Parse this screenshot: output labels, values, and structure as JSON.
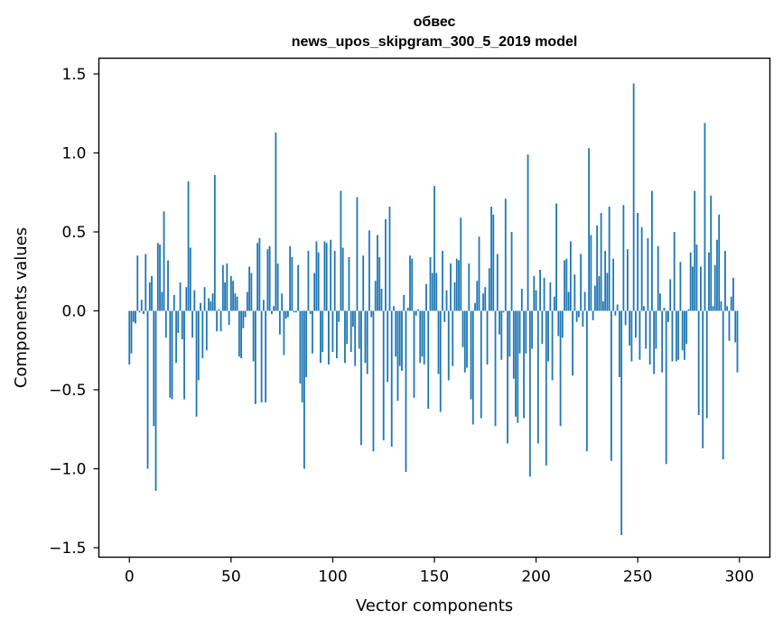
{
  "chart_data": {
    "type": "bar",
    "title": "обвес",
    "subtitle": "news_upos_skipgram_300_5_2019 model",
    "xlabel": "Vector components",
    "ylabel": "Components values",
    "xlim": [
      -15,
      315
    ],
    "ylim": [
      -1.56,
      1.6
    ],
    "xticks": [
      0,
      50,
      100,
      150,
      200,
      250,
      300
    ],
    "xtick_labels": [
      "0",
      "50",
      "100",
      "150",
      "200",
      "250",
      "300"
    ],
    "yticks": [
      -1.5,
      -1.0,
      -0.5,
      0.0,
      0.5,
      1.0,
      1.5
    ],
    "ytick_labels": [
      "−1.5",
      "−1.0",
      "−0.5",
      "0.0",
      "0.5",
      "1.0",
      "1.5"
    ],
    "bar_color": "#1f77b4",
    "grid": false,
    "values": [
      -0.34,
      -0.27,
      -0.07,
      -0.08,
      0.35,
      -0.01,
      0.07,
      -0.02,
      0.36,
      -1.0,
      0.18,
      0.22,
      -0.73,
      -1.14,
      0.43,
      0.42,
      0.12,
      0.63,
      -0.17,
      0.32,
      -0.55,
      -0.56,
      0.1,
      -0.33,
      -0.14,
      0.18,
      -0.18,
      -0.56,
      0.15,
      0.82,
      0.4,
      -0.17,
      0.13,
      -0.67,
      -0.44,
      0.05,
      -0.3,
      0.15,
      -0.25,
      0.08,
      0.06,
      0.11,
      0.86,
      -0.13,
      0.01,
      -0.13,
      0.29,
      0.18,
      0.3,
      -0.09,
      0.22,
      0.19,
      0.11,
      0.09,
      -0.29,
      -0.3,
      -0.11,
      -0.04,
      0.12,
      0.28,
      0.24,
      -0.32,
      -0.59,
      0.43,
      0.46,
      -0.58,
      0.07,
      -0.58,
      0.39,
      0.41,
      -0.02,
      0.03,
      1.13,
      0.3,
      -0.15,
      0.11,
      -0.28,
      -0.05,
      -0.04,
      0.41,
      0.34,
      -0.01,
      -0.01,
      0.29,
      -0.46,
      -0.58,
      -1.0,
      -0.42,
      0.38,
      -0.02,
      -0.27,
      0.24,
      0.44,
      0.37,
      -0.33,
      -0.26,
      0.44,
      0.43,
      -0.34,
      0.45,
      -0.26,
      0.38,
      -0.3,
      -0.07,
      0.76,
      0.4,
      -0.33,
      -0.21,
      0.34,
      -0.26,
      -0.1,
      -0.35,
      0.72,
      -0.24,
      -0.85,
      0.35,
      -0.33,
      -0.4,
      0.51,
      -0.04,
      -0.89,
      0.19,
      0.48,
      0.34,
      0.14,
      -0.82,
      0.58,
      -0.45,
      0.66,
      -0.86,
      0.03,
      -0.29,
      -0.57,
      -0.35,
      -0.38,
      0.1,
      -1.02,
      0.02,
      0.35,
      0.33,
      -0.55,
      -0.03,
      0.01,
      -0.33,
      -0.29,
      -0.34,
      0.17,
      -0.62,
      0.34,
      0.24,
      0.79,
      0.24,
      -0.4,
      -0.64,
      0.38,
      -0.07,
      0.13,
      -0.44,
      0.3,
      -0.35,
      0.18,
      0.33,
      0.32,
      0.59,
      -0.23,
      -0.39,
      -0.36,
      0.3,
      -0.56,
      -0.72,
      0.05,
      0.19,
      0.47,
      -0.68,
      0.11,
      0.15,
      -0.34,
      0.27,
      0.66,
      0.61,
      -0.73,
      0.36,
      -0.15,
      -0.31,
      -0.01,
      0.71,
      -0.84,
      -0.29,
      0.5,
      -0.43,
      -0.67,
      -0.71,
      -0.27,
      0.14,
      -0.68,
      -0.27,
      0.99,
      -1.05,
      -0.24,
      0.22,
      0.13,
      -0.84,
      0.26,
      -0.21,
      0.21,
      -0.98,
      -0.32,
      0.18,
      -0.44,
      0.09,
      0.68,
      -0.16,
      -0.73,
      -0.17,
      0.32,
      0.33,
      0.12,
      0.44,
      -0.41,
      0.23,
      -0.07,
      -0.04,
      0.36,
      -0.1,
      0.12,
      -0.89,
      1.03,
      0.48,
      -0.06,
      0.16,
      0.54,
      0.22,
      0.62,
      0.06,
      0.38,
      0.24,
      0.66,
      -0.95,
      0.33,
      -0.03,
      0.04,
      -0.42,
      -1.42,
      0.67,
      -0.09,
      0.39,
      -0.22,
      -0.32,
      1.44,
      -0.17,
      0.62,
      -0.31,
      0.53,
      0.03,
      -0.24,
      0.46,
      -0.34,
      0.76,
      -0.4,
      -0.24,
      0.41,
      0.11,
      -0.39,
      0.02,
      -0.97,
      -0.07,
      0.2,
      -0.32,
      0.5,
      -0.32,
      -0.31,
      0.31,
      -0.25,
      -0.31,
      -0.21,
      0.01,
      0.37,
      0.28,
      0.76,
      0.42,
      -0.66,
      0.28,
      -0.87,
      1.19,
      -0.68,
      0.37,
      0.73,
      0.03,
      0.29,
      0.45,
      0.61,
      0.06,
      -0.94,
      0.38,
      0.03,
      -0.19,
      0.09,
      0.21,
      -0.2,
      -0.39
    ]
  }
}
